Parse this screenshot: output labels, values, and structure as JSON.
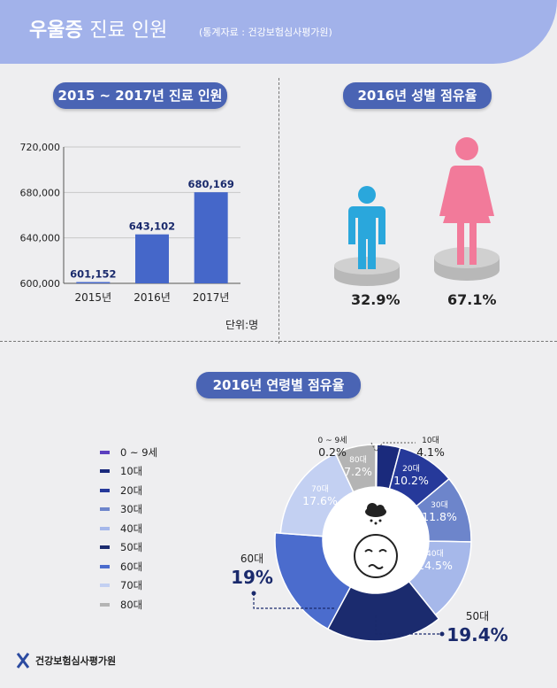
{
  "header": {
    "title_bold": "우울증",
    "title_light": "진료 인원",
    "source": "(통계자료 : 건강보험심사평가원)"
  },
  "sections": {
    "bar_title": "2015 ~ 2017년 진료 인원",
    "gender_title": "2016년 성별 점유율",
    "age_title": "2016년 연령별 점유율"
  },
  "gender": {
    "male_pct": "32.9%",
    "female_pct": "67.1%",
    "male_color": "#2aa7dc",
    "female_color": "#f27a9a"
  },
  "unit_label": "단위:명",
  "footer": {
    "org": "건강보험심사평가원"
  },
  "chart_data": [
    {
      "type": "bar",
      "categories": [
        "2015년",
        "2016년",
        "2017년"
      ],
      "values": [
        601152,
        643102,
        680169
      ],
      "value_labels": [
        "601,152",
        "643,102",
        "680,169"
      ],
      "ylim": [
        600000,
        720000
      ],
      "yticks": [
        600000,
        640000,
        680000,
        720000
      ],
      "ytick_labels": [
        "600,000",
        "640,000",
        "680,000",
        "720,000"
      ],
      "grid": true,
      "color": "#4567c9"
    },
    {
      "type": "pie",
      "donut": true,
      "slices": [
        {
          "label": "0 ~ 9세",
          "value": 0.2,
          "value_label": "0.2%",
          "color": "#5b3fbf"
        },
        {
          "label": "10대",
          "value": 4.1,
          "value_label": "4.1%",
          "color": "#1a2a7c"
        },
        {
          "label": "20대",
          "value": 10.2,
          "value_label": "10.2%",
          "color": "#26399a"
        },
        {
          "label": "30대",
          "value": 11.8,
          "value_label": "11.8%",
          "color": "#6d85cb"
        },
        {
          "label": "40대",
          "value": 14.5,
          "value_label": "14.5%",
          "color": "#a6b8ea"
        },
        {
          "label": "50대",
          "value": 19.4,
          "value_label": "19.4%",
          "color": "#1b2b6e"
        },
        {
          "label": "60대",
          "value": 19.0,
          "value_label": "19%",
          "color": "#4b6ccd"
        },
        {
          "label": "70대",
          "value": 17.6,
          "value_label": "17.6%",
          "color": "#c3d0f2"
        },
        {
          "label": "80대",
          "value": 7.2,
          "value_label": "7.2%",
          "color": "#b4b4b4"
        }
      ],
      "legend_placement": "left"
    }
  ]
}
